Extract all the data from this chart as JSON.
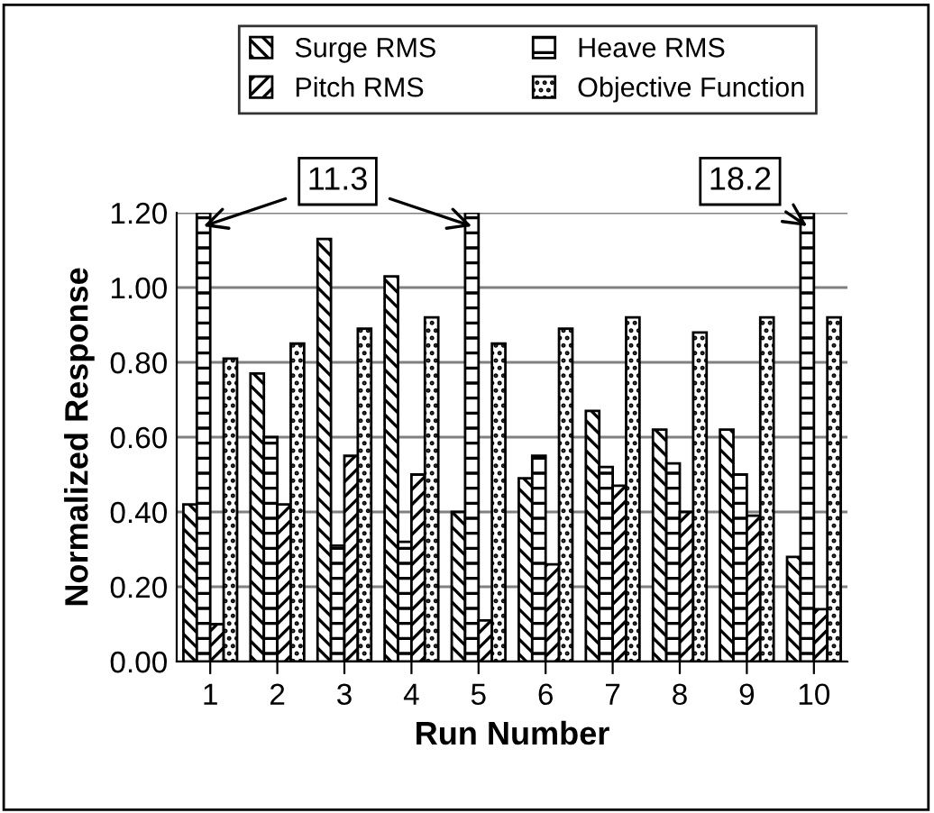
{
  "chart_data": {
    "type": "bar",
    "xlabel": "Run Number",
    "ylabel": "Normalized Response",
    "categories": [
      "1",
      "2",
      "3",
      "4",
      "5",
      "6",
      "7",
      "8",
      "9",
      "10"
    ],
    "series": [
      {
        "name": "Surge RMS",
        "color": "#000000",
        "values": [
          0.42,
          0.77,
          1.13,
          1.03,
          0.4,
          0.49,
          0.67,
          0.62,
          0.62,
          0.28
        ]
      },
      {
        "name": "Heave RMS",
        "color": "#000000",
        "values": [
          1.2,
          0.6,
          0.31,
          0.32,
          1.2,
          0.55,
          0.52,
          0.53,
          0.5,
          1.2
        ]
      },
      {
        "name": "Pitch RMS",
        "color": "#000000",
        "values": [
          0.1,
          0.42,
          0.55,
          0.5,
          0.11,
          0.26,
          0.47,
          0.4,
          0.39,
          0.14
        ]
      },
      {
        "name": "Objective Function",
        "color": "#000000",
        "values": [
          0.81,
          0.85,
          0.89,
          0.92,
          0.85,
          0.89,
          0.92,
          0.88,
          0.92,
          0.92
        ]
      }
    ],
    "annotations": [
      {
        "text": "11.3",
        "x": "1",
        "y": 1.2
      },
      {
        "text": "18.2",
        "x": "10",
        "y": 1.2
      }
    ],
    "ylim": [
      0,
      1.2
    ],
    "yticks": [
      {
        "value": 0,
        "label": "0.00"
      },
      {
        "value": 0.2,
        "label": "0.20"
      },
      {
        "value": 0.4,
        "label": "0.40"
      },
      {
        "value": 0.6,
        "label": "0.60"
      },
      {
        "value": 0.8,
        "label": "0.80"
      },
      {
        "value": 1.0,
        "label": "1.00"
      },
      {
        "value": 1.2,
        "label": "1.20"
      }
    ],
    "grid": "y",
    "legend": "top"
  }
}
